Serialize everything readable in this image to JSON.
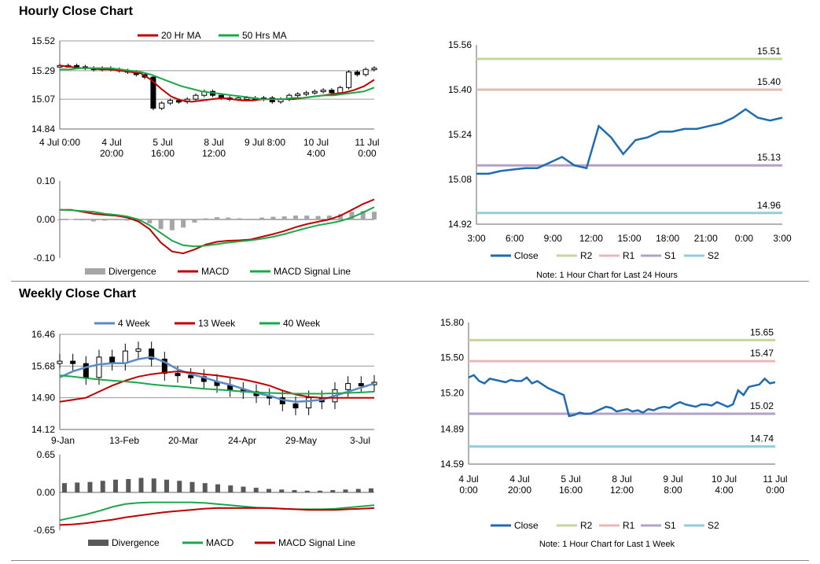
{
  "sections": {
    "hourly_title": "Hourly Close Chart",
    "weekly_title": "Weekly Close Chart"
  },
  "colors": {
    "ma20": "#c00000",
    "ma50": "#1aa84a",
    "wk4": "#5b8bc6",
    "close_blue": "#1f6bb0",
    "r2": "#c3d69b",
    "r1": "#e6b9b8",
    "s1": "#b3a2c7",
    "s2": "#93cddd",
    "divergence": "#a6a6a6",
    "divergence_dark": "#595959"
  },
  "chart_data": [
    {
      "id": "hourly_price",
      "type": "line",
      "title": "Hourly Close Chart",
      "legend": [
        "20 Hr MA",
        "50 Hrs MA"
      ],
      "x_ticks": [
        "4 Jul 0:00",
        "4 Jul\n20:00",
        "5 Jul\n16:00",
        "8 Jul\n12:00",
        "9 Jul 8:00",
        "10 Jul\n4:00",
        "11 Jul\n0:00"
      ],
      "y_ticks": [
        "15.52",
        "15.29",
        "15.07",
        "14.84"
      ],
      "ylim": [
        14.84,
        15.52
      ],
      "series": [
        {
          "name": "Close (candles)",
          "values": [
            15.33,
            15.33,
            15.32,
            15.31,
            15.3,
            15.31,
            15.3,
            15.29,
            15.28,
            15.26,
            15.24,
            15.0,
            15.04,
            15.06,
            15.05,
            15.07,
            15.1,
            15.13,
            15.1,
            15.08,
            15.07,
            15.08,
            15.08,
            15.07,
            15.08,
            15.05,
            15.07,
            15.1,
            15.11,
            15.12,
            15.13,
            15.14,
            15.12,
            15.16,
            15.28,
            15.26,
            15.3,
            15.31
          ]
        },
        {
          "name": "20 Hr MA",
          "values": [
            15.33,
            15.32,
            15.31,
            15.31,
            15.3,
            15.3,
            15.29,
            15.28,
            15.27,
            15.22,
            15.15,
            15.09,
            15.06,
            15.05,
            15.06,
            15.07,
            15.08,
            15.07,
            15.06,
            15.06,
            15.07,
            15.07,
            15.07,
            15.07,
            15.08,
            15.09,
            15.1,
            15.11,
            15.12,
            15.14,
            15.17,
            15.22
          ]
        },
        {
          "name": "50 Hrs MA",
          "values": [
            15.3,
            15.3,
            15.31,
            15.31,
            15.31,
            15.31,
            15.3,
            15.29,
            15.28,
            15.26,
            15.23,
            15.2,
            15.17,
            15.15,
            15.13,
            15.12,
            15.11,
            15.1,
            15.09,
            15.08,
            15.07,
            15.07,
            15.07,
            15.08,
            15.08,
            15.09,
            15.1,
            15.1,
            15.11,
            15.12,
            15.13,
            15.16
          ]
        }
      ]
    },
    {
      "id": "hourly_macd",
      "type": "line",
      "legend": [
        "Divergence",
        "MACD",
        "MACD Signal Line"
      ],
      "y_ticks": [
        "0.10",
        "0.00",
        "-0.10"
      ],
      "ylim": [
        -0.1,
        0.1
      ],
      "series": [
        {
          "name": "MACD",
          "values": [
            0.025,
            0.025,
            0.02,
            0.015,
            0.012,
            0.01,
            0.005,
            -0.005,
            -0.025,
            -0.06,
            -0.083,
            -0.088,
            -0.078,
            -0.065,
            -0.058,
            -0.055,
            -0.054,
            -0.052,
            -0.045,
            -0.038,
            -0.03,
            -0.02,
            -0.012,
            -0.006,
            0.0,
            0.01,
            0.025,
            0.04,
            0.052
          ]
        },
        {
          "name": "MACD Signal Line",
          "values": [
            0.025,
            0.024,
            0.022,
            0.02,
            0.015,
            0.012,
            0.008,
            0.0,
            -0.015,
            -0.035,
            -0.055,
            -0.067,
            -0.07,
            -0.068,
            -0.064,
            -0.06,
            -0.057,
            -0.054,
            -0.05,
            -0.045,
            -0.038,
            -0.03,
            -0.022,
            -0.015,
            -0.01,
            -0.004,
            0.005,
            0.018,
            0.032
          ]
        },
        {
          "name": "Divergence",
          "values": [
            0.0,
            0.001,
            -0.002,
            -0.005,
            -0.003,
            -0.002,
            -0.003,
            -0.005,
            -0.01,
            -0.025,
            -0.028,
            -0.021,
            -0.008,
            0.003,
            0.006,
            0.005,
            0.003,
            0.002,
            0.005,
            0.007,
            0.008,
            0.01,
            0.01,
            0.009,
            0.01,
            0.014,
            0.02,
            0.022,
            0.02
          ]
        }
      ]
    },
    {
      "id": "hourly_levels",
      "type": "line",
      "x_ticks": [
        "3:00",
        "6:00",
        "9:00",
        "12:00",
        "15:00",
        "18:00",
        "21:00",
        "0:00",
        "3:00"
      ],
      "y_ticks": [
        "15.56",
        "15.40",
        "15.24",
        "15.08",
        "14.92"
      ],
      "ylim": [
        14.92,
        15.56
      ],
      "levels": [
        {
          "name": "R2",
          "value": 15.51,
          "label": "15.51"
        },
        {
          "name": "R1",
          "value": 15.4,
          "label": "15.40"
        },
        {
          "name": "S1",
          "value": 15.13,
          "label": "15.13"
        },
        {
          "name": "S2",
          "value": 14.96,
          "label": "14.96"
        }
      ],
      "legend": [
        "Close",
        "R2",
        "R1",
        "S1",
        "S2"
      ],
      "note": "Note: 1 Hour Chart for Last 24 Hours",
      "series": [
        {
          "name": "Close",
          "values": [
            15.1,
            15.1,
            15.11,
            15.115,
            15.12,
            15.12,
            15.14,
            15.16,
            15.13,
            15.12,
            15.27,
            15.23,
            15.17,
            15.22,
            15.23,
            15.25,
            15.25,
            15.26,
            15.26,
            15.27,
            15.28,
            15.3,
            15.33,
            15.3,
            15.29,
            15.3
          ]
        }
      ]
    },
    {
      "id": "weekly_price",
      "type": "line",
      "title": "Weekly Close Chart",
      "legend": [
        "4 Week",
        "13 Week",
        "40 Week"
      ],
      "x_ticks": [
        "9-Jan",
        "13-Feb",
        "20-Mar",
        "24-Apr",
        "29-May",
        "3-Jul"
      ],
      "y_ticks": [
        "16.46",
        "15.68",
        "14.90",
        "14.12"
      ],
      "ylim": [
        14.12,
        16.46
      ],
      "series": [
        {
          "name": "Close (candles)",
          "values": [
            15.8,
            15.74,
            15.4,
            15.9,
            15.75,
            16.05,
            16.1,
            15.85,
            15.5,
            15.45,
            15.42,
            15.3,
            15.2,
            15.1,
            15.05,
            14.95,
            14.9,
            14.75,
            14.65,
            14.9,
            14.8,
            15.1,
            15.25,
            15.22,
            15.28
          ]
        },
        {
          "name": "4 Week",
          "values": [
            15.4,
            15.55,
            15.65,
            15.72,
            15.75,
            15.75,
            15.85,
            15.9,
            15.78,
            15.6,
            15.48,
            15.4,
            15.3,
            15.22,
            15.12,
            15.02,
            14.95,
            14.85,
            14.8,
            14.82,
            14.85,
            14.95,
            15.05,
            15.15,
            15.25
          ]
        },
        {
          "name": "13 Week",
          "values": [
            14.8,
            14.85,
            14.9,
            15.05,
            15.2,
            15.32,
            15.42,
            15.48,
            15.52,
            15.55,
            15.52,
            15.48,
            15.45,
            15.4,
            15.35,
            15.28,
            15.2,
            15.08,
            14.98,
            14.92,
            14.9,
            14.9,
            14.9,
            14.9,
            14.9
          ]
        },
        {
          "name": "40 Week",
          "values": [
            15.45,
            15.42,
            15.38,
            15.35,
            15.32,
            15.3,
            15.27,
            15.23,
            15.2,
            15.18,
            15.15,
            15.12,
            15.1,
            15.08,
            15.05,
            15.03,
            15.02,
            15.01,
            15.0,
            15.0,
            15.0,
            15.01,
            15.02,
            15.03,
            15.05
          ]
        }
      ]
    },
    {
      "id": "weekly_macd",
      "type": "line",
      "legend": [
        "Divergence",
        "MACD",
        "MACD Signal Line"
      ],
      "y_ticks": [
        "0.65",
        "0.00",
        "-0.65"
      ],
      "ylim": [
        -0.65,
        0.65
      ],
      "series": [
        {
          "name": "Divergence",
          "values": [
            0.16,
            0.17,
            0.18,
            0.2,
            0.22,
            0.23,
            0.25,
            0.24,
            0.22,
            0.2,
            0.18,
            0.16,
            0.14,
            0.12,
            0.1,
            0.08,
            0.06,
            0.05,
            0.04,
            0.03,
            0.03,
            0.04,
            0.05,
            0.06,
            0.07
          ]
        },
        {
          "name": "MACD",
          "values": [
            -0.48,
            -0.43,
            -0.38,
            -0.32,
            -0.25,
            -0.2,
            -0.18,
            -0.17,
            -0.17,
            -0.17,
            -0.17,
            -0.18,
            -0.2,
            -0.22,
            -0.24,
            -0.26,
            -0.27,
            -0.28,
            -0.29,
            -0.29,
            -0.29,
            -0.28,
            -0.26,
            -0.24,
            -0.22
          ]
        },
        {
          "name": "MACD Signal Line",
          "values": [
            -0.56,
            -0.55,
            -0.53,
            -0.5,
            -0.47,
            -0.43,
            -0.4,
            -0.37,
            -0.34,
            -0.32,
            -0.3,
            -0.28,
            -0.27,
            -0.27,
            -0.27,
            -0.27,
            -0.27,
            -0.28,
            -0.29,
            -0.3,
            -0.3,
            -0.3,
            -0.29,
            -0.28,
            -0.27
          ]
        }
      ]
    },
    {
      "id": "weekly_levels",
      "type": "line",
      "x_ticks": [
        "4 Jul\n0:00",
        "4 Jul\n20:00",
        "5 Jul\n16:00",
        "8 Jul\n12:00",
        "9 Jul\n8:00",
        "10 Jul\n4:00",
        "11 Jul\n0:00"
      ],
      "y_ticks": [
        "15.80",
        "15.50",
        "15.20",
        "14.89",
        "14.59"
      ],
      "ylim": [
        14.59,
        15.8
      ],
      "levels": [
        {
          "name": "R2",
          "value": 15.65,
          "label": "15.65"
        },
        {
          "name": "R1",
          "value": 15.47,
          "label": "15.47"
        },
        {
          "name": "S1",
          "value": 15.02,
          "label": "15.02"
        },
        {
          "name": "S2",
          "value": 14.74,
          "label": "14.74"
        }
      ],
      "legend": [
        "Close",
        "R2",
        "R1",
        "S1",
        "S2"
      ],
      "note": "Note: 1 Hour Chart for Last 1 Week",
      "series": [
        {
          "name": "Close",
          "values": [
            15.33,
            15.35,
            15.3,
            15.28,
            15.32,
            15.31,
            15.3,
            15.29,
            15.31,
            15.3,
            15.3,
            15.33,
            15.28,
            15.3,
            15.27,
            15.24,
            15.22,
            15.2,
            15.18,
            15.0,
            15.01,
            15.03,
            15.02,
            15.02,
            15.04,
            15.06,
            15.08,
            15.07,
            15.04,
            15.05,
            15.06,
            15.04,
            15.05,
            15.03,
            15.06,
            15.05,
            15.07,
            15.08,
            15.07,
            15.1,
            15.12,
            15.1,
            15.09,
            15.08,
            15.1,
            15.1,
            15.09,
            15.12,
            15.1,
            15.08,
            15.1,
            15.22,
            15.18,
            15.25,
            15.26,
            15.27,
            15.32,
            15.28,
            15.29
          ]
        }
      ]
    }
  ]
}
